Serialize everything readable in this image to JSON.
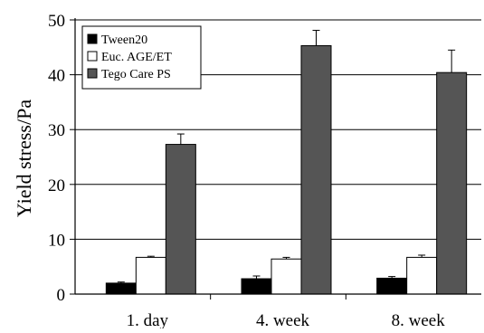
{
  "chart_data": {
    "type": "bar",
    "title": "",
    "xlabel": "",
    "ylabel": "Yield stress/Pa",
    "ylim": [
      0,
      50
    ],
    "yticks": [
      0,
      10,
      20,
      30,
      40,
      50
    ],
    "grid": true,
    "legend_position": "top-left",
    "categories": [
      "1. day",
      "4. week",
      "8. week"
    ],
    "series": [
      {
        "name": "Tween20",
        "color": "#000000",
        "values": [
          2.0,
          2.8,
          2.9
        ],
        "errors": [
          0.2,
          0.5,
          0.3
        ]
      },
      {
        "name": "Euc. AGE/ET",
        "color": "#ffffff",
        "values": [
          6.7,
          6.4,
          6.7
        ],
        "errors": [
          0.2,
          0.3,
          0.4
        ]
      },
      {
        "name": "Tego Care PS",
        "color": "#555555",
        "values": [
          27.3,
          45.3,
          40.4
        ],
        "errors": [
          1.9,
          2.8,
          4.1
        ]
      }
    ]
  }
}
